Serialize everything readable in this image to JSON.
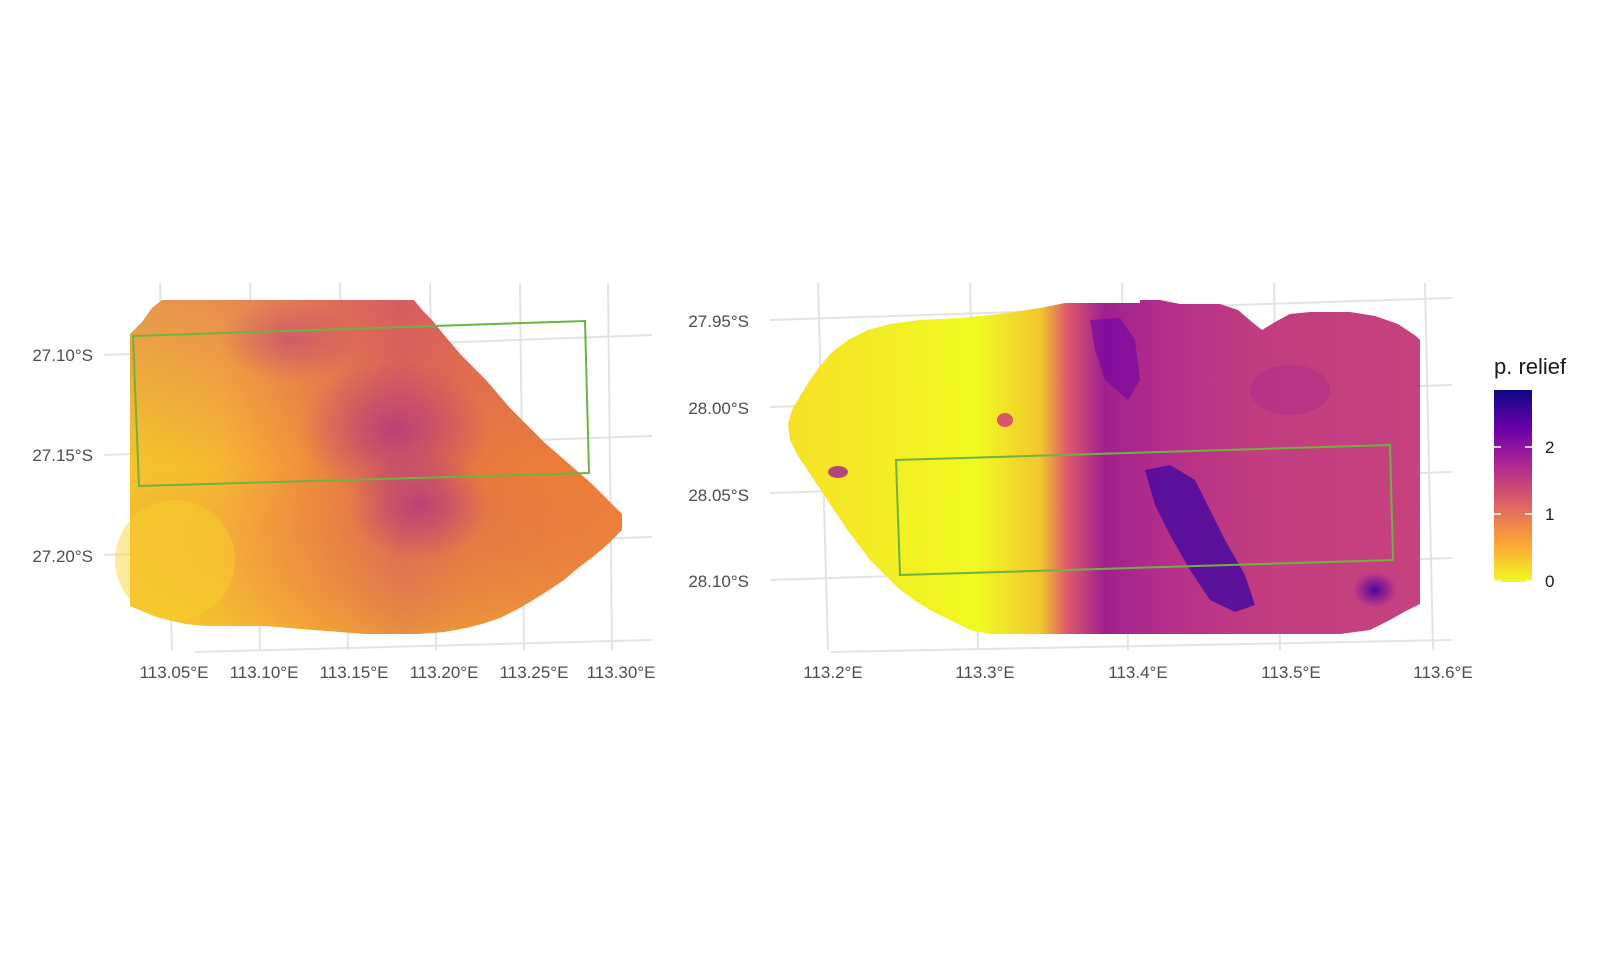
{
  "panels": [
    {
      "id": "left",
      "x_ticks": [
        "113.05°E",
        "113.10°E",
        "113.15°E",
        "113.20°E",
        "113.25°E",
        "113.30°E"
      ],
      "y_ticks": [
        "27.10°S",
        "27.15°S",
        "27.20°S"
      ]
    },
    {
      "id": "right",
      "x_ticks": [
        "113.2°E",
        "113.3°E",
        "113.4°E",
        "113.5°E",
        "113.6°E"
      ],
      "y_ticks": [
        "27.95°S",
        "28.00°S",
        "28.05°S",
        "28.10°S"
      ]
    }
  ],
  "legend": {
    "title": "p. relief",
    "ticks": [
      "0",
      "1",
      "2"
    ],
    "range": [
      0,
      2.8
    ],
    "palette": "plasma (reversed)",
    "colors": [
      "#f0f921",
      "#fca636",
      "#e16462",
      "#b12a90",
      "#6a00a8",
      "#0d0887"
    ]
  },
  "colors": {
    "outline": "#6db33f",
    "grid": "#e3e3e3"
  }
}
